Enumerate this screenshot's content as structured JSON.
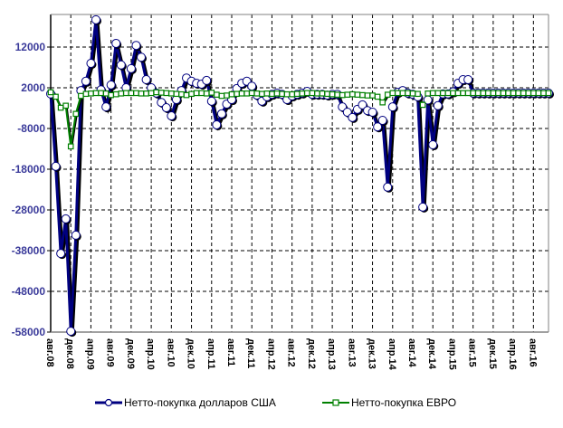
{
  "chart_data": {
    "type": "line",
    "title": "",
    "xlabel": "",
    "ylabel": "",
    "ylim": [
      -58000,
      20000
    ],
    "xlim_months": [
      0,
      99
    ],
    "grid": true,
    "legend_position": "bottom",
    "y_ticks": [
      "12000",
      "2000",
      "-8000",
      "-18000",
      "-28000",
      "-38000",
      "-48000",
      "-58000"
    ],
    "y_tick_values": [
      12000,
      2000,
      -8000,
      -18000,
      -28000,
      -38000,
      -48000,
      -58000
    ],
    "x_tick_labels": [
      "авг.08",
      "дек.08",
      "апр.09",
      "авг.09",
      "дек.09",
      "апр.10",
      "авг.10",
      "дек.10",
      "апр.11",
      "авг.11",
      "дек.11",
      "апр.12",
      "авг.12",
      "дек.12",
      "апр.13",
      "авг.13",
      "дек.13",
      "апр.14",
      "авг.14",
      "дек.14",
      "апр.15",
      "авг.15",
      "дек.15",
      "апр.16",
      "авг.16"
    ],
    "x_tick_step_months": 4,
    "colors": {
      "usd": "#000080",
      "eur": "#008000",
      "grid": "#000000",
      "axis": "#808080"
    },
    "series": [
      {
        "name": "Нетто-покупка долларов США",
        "values": [
          500,
          -17300,
          -38700,
          -30200,
          -57800,
          -34200,
          1300,
          3600,
          8000,
          18700,
          1500,
          -2700,
          2700,
          12900,
          7600,
          2000,
          6700,
          12400,
          9500,
          4000,
          2000,
          700,
          -1600,
          -2900,
          -4900,
          -900,
          1300,
          4400,
          3600,
          3100,
          2900,
          3800,
          -1300,
          -7100,
          -4400,
          -2000,
          -900,
          1800,
          3100,
          3600,
          2400,
          200,
          -1300,
          -200,
          400,
          700,
          400,
          -900,
          0,
          400,
          700,
          1100,
          400,
          400,
          400,
          200,
          400,
          400,
          -2700,
          -4000,
          -5300,
          -3300,
          -2200,
          -3600,
          -4000,
          -7600,
          -6000,
          -22400,
          -2700,
          900,
          1300,
          700,
          400,
          -200,
          -27300,
          -1000,
          -12000,
          -2400,
          500,
          500,
          1000,
          3100,
          4000,
          4000,
          700,
          700,
          700,
          700,
          700,
          700,
          700,
          700,
          700,
          700,
          700,
          700,
          700,
          700,
          700,
          700
        ]
      },
      {
        "name": "Нетто-покупка ЕВРО",
        "values": [
          900,
          -200,
          -2900,
          -2400,
          -12400,
          -4400,
          0,
          500,
          600,
          700,
          700,
          600,
          200,
          400,
          600,
          700,
          700,
          700,
          600,
          600,
          700,
          900,
          800,
          700,
          600,
          500,
          400,
          200,
          500,
          700,
          700,
          600,
          800,
          300,
          0,
          100,
          400,
          500,
          600,
          600,
          700,
          600,
          500,
          600,
          500,
          600,
          500,
          400,
          400,
          500,
          600,
          700,
          700,
          600,
          600,
          500,
          400,
          300,
          200,
          300,
          400,
          300,
          200,
          100,
          100,
          -200,
          -1600,
          300,
          700,
          700,
          700,
          700,
          600,
          500,
          -2200,
          600,
          700,
          700,
          700,
          700,
          700,
          700,
          700,
          700,
          700,
          700,
          700,
          700,
          700,
          700,
          700,
          700,
          700,
          700,
          700,
          700,
          700,
          700,
          700,
          700
        ]
      }
    ]
  }
}
